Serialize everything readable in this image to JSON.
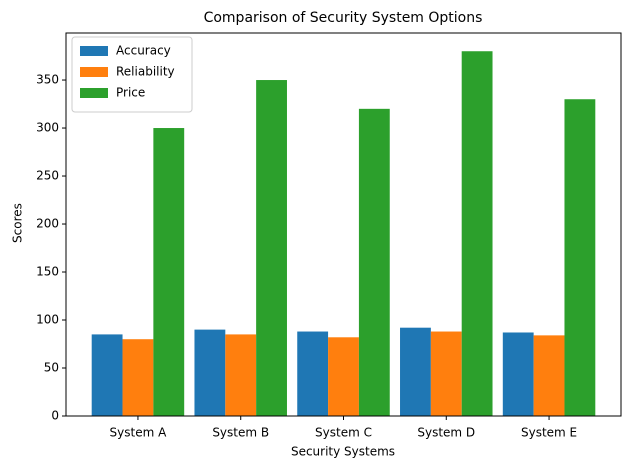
{
  "chart_data": {
    "type": "bar",
    "title": "Comparison of Security System Options",
    "x_label": "Security Systems",
    "y_label": "Scores",
    "categories": [
      "System A",
      "System B",
      "System C",
      "System D",
      "System E"
    ],
    "series": [
      {
        "name": "Accuracy",
        "color": "#1f77b4",
        "values": [
          85,
          90,
          88,
          92,
          87
        ]
      },
      {
        "name": "Reliability",
        "color": "#ff7f0e",
        "values": [
          80,
          85,
          82,
          88,
          84
        ]
      },
      {
        "name": "Price",
        "color": "#2ca02c",
        "values": [
          300,
          350,
          320,
          380,
          330
        ]
      }
    ],
    "ylim": [
      0,
      399
    ],
    "yticks": [
      0,
      50,
      100,
      150,
      200,
      250,
      300,
      350
    ],
    "grid": false,
    "legend": "upper-left"
  }
}
